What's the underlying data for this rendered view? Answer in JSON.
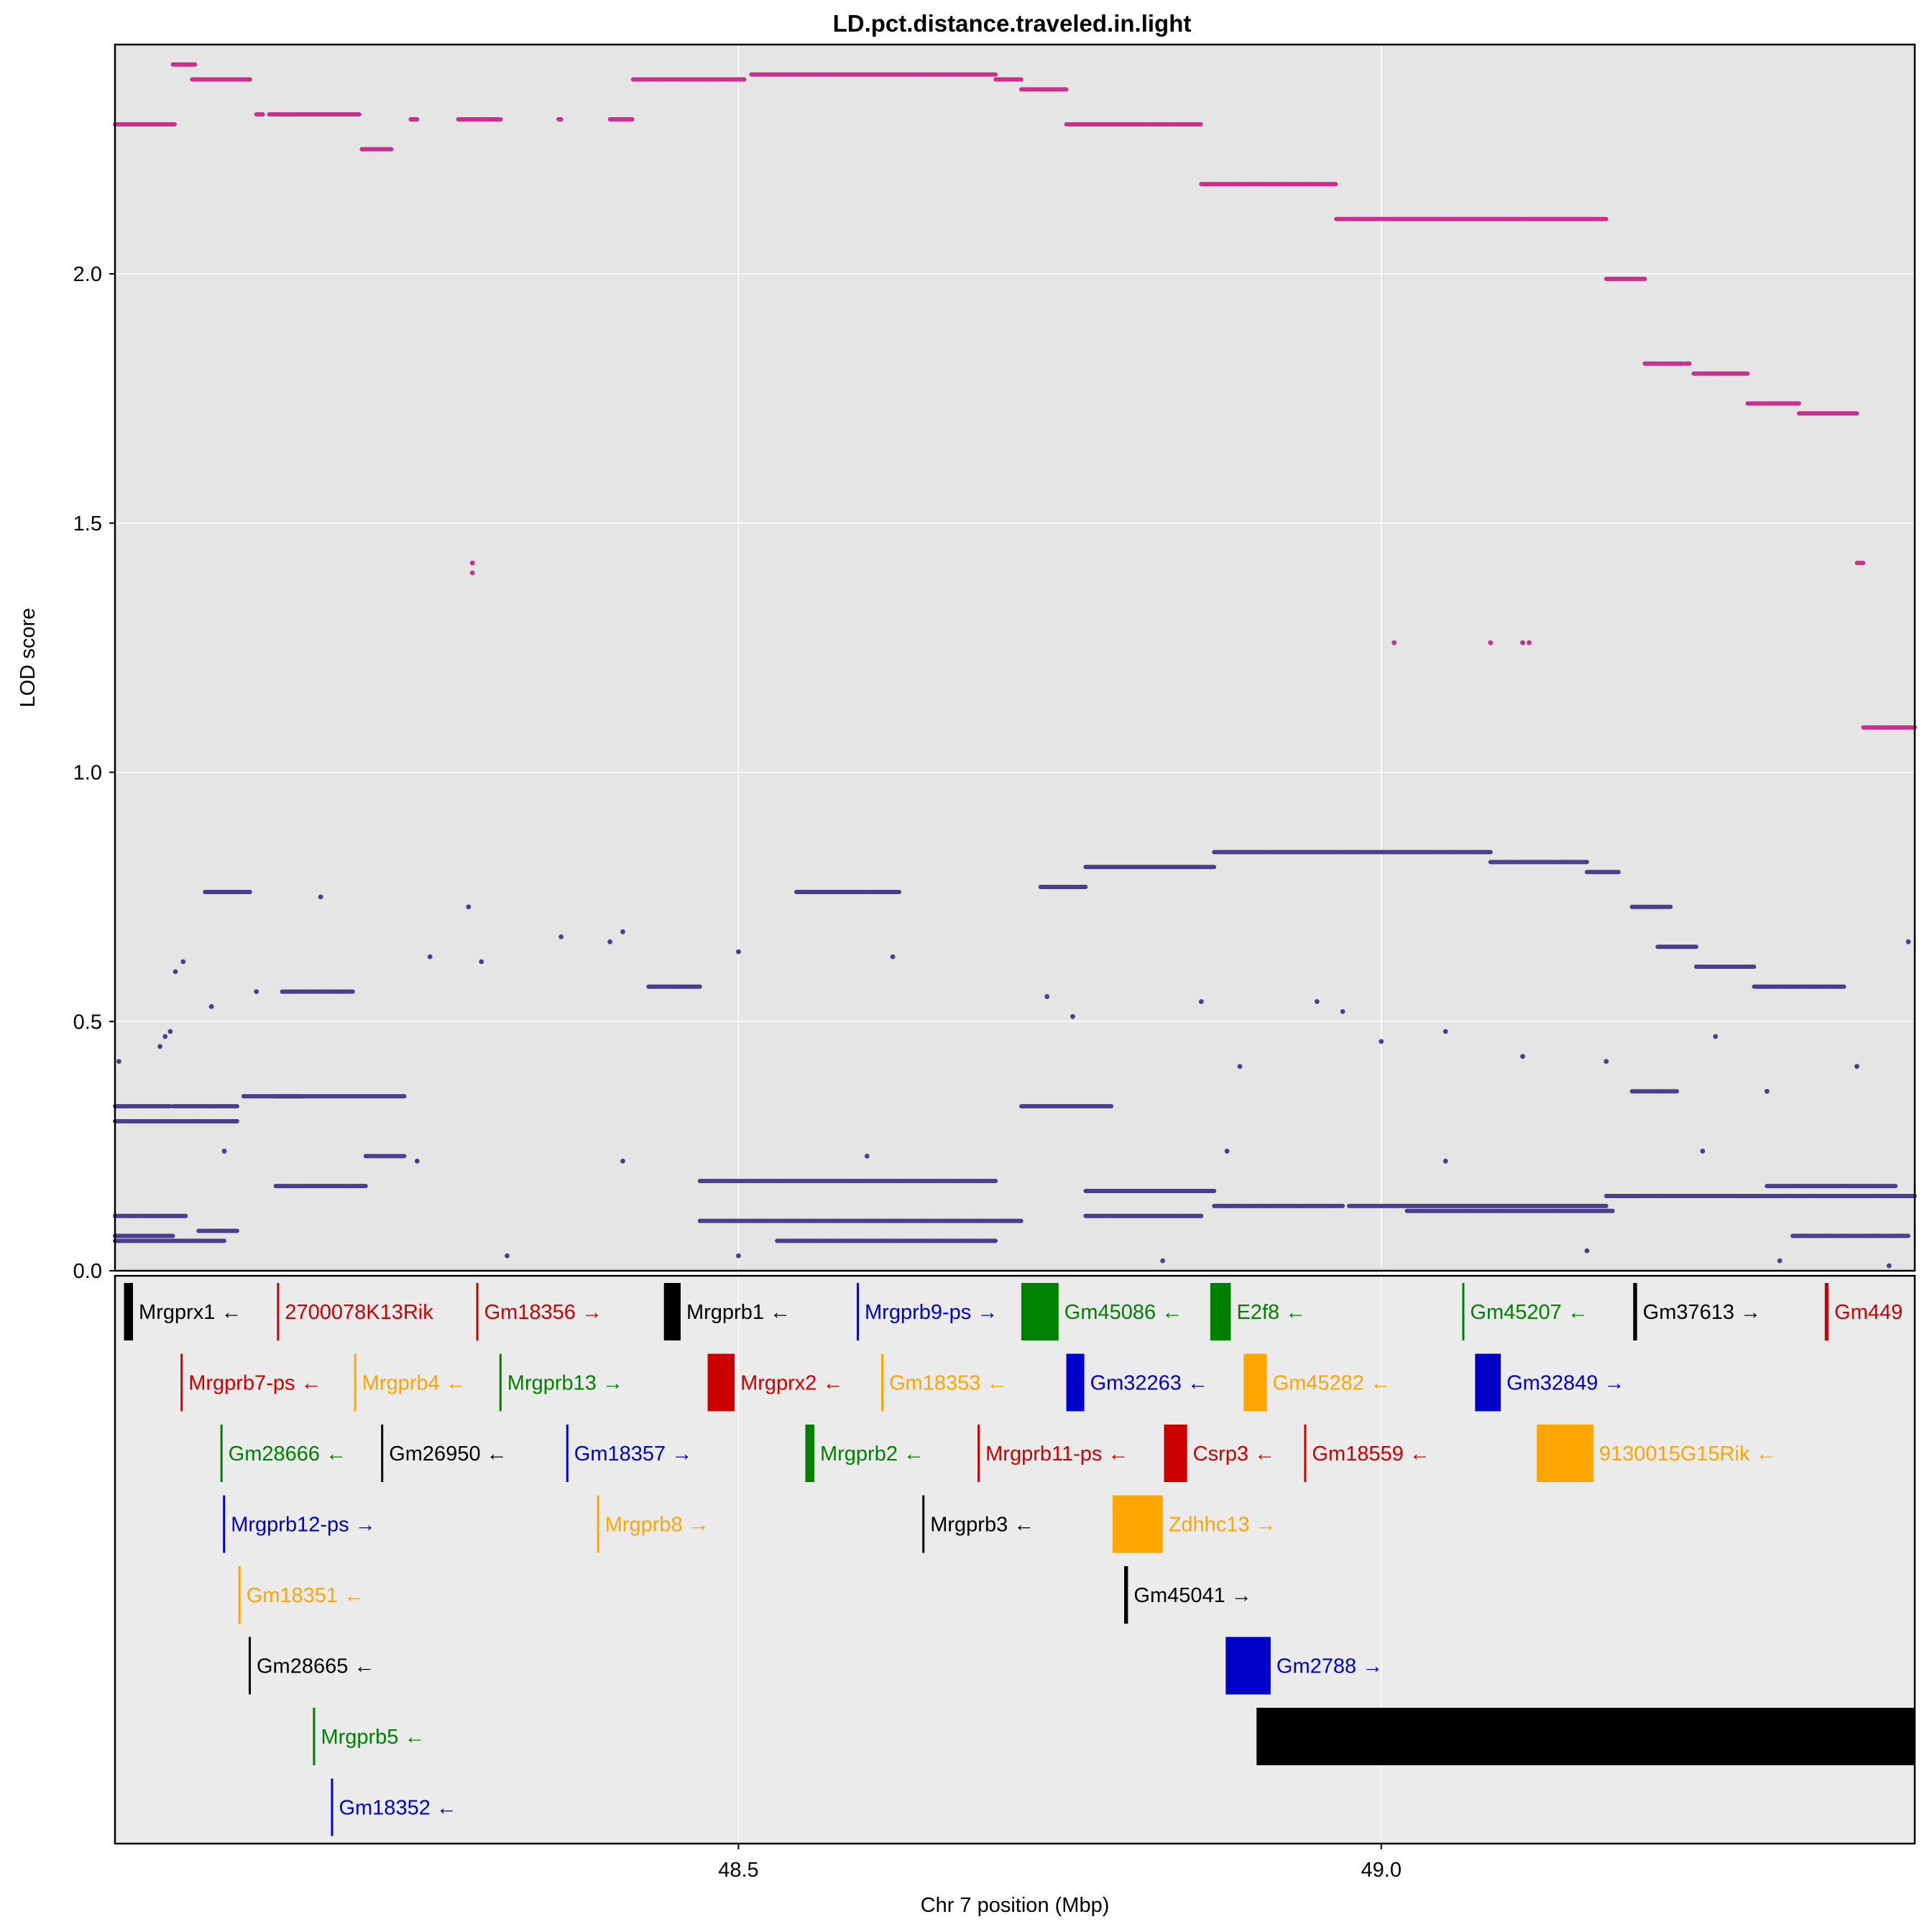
{
  "chart_data": {
    "type": "scatter",
    "title": "LD.pct.distance.traveled.in.light",
    "xlabel": "Chr 7 position (Mbp)",
    "ylabel": "LOD score",
    "xlim": [
      48.015,
      49.415
    ],
    "ylim": [
      0.0,
      2.46
    ],
    "x_ticks": [
      {
        "value": 48.5,
        "label": "48.5"
      },
      {
        "value": 49.0,
        "label": "49.0"
      }
    ],
    "y_ticks": [
      {
        "value": 0.0,
        "label": "0.0"
      },
      {
        "value": 0.5,
        "label": "0.5"
      },
      {
        "value": 1.0,
        "label": "1.0"
      },
      {
        "value": 1.5,
        "label": "1.5"
      },
      {
        "value": 2.0,
        "label": "2.0"
      }
    ],
    "colors": {
      "panel_bg": "#e5e5e5",
      "gene_panel_bg": "#ebebeb",
      "grid": "#ffffff",
      "highlight": "#c8328c",
      "background_snps": "#4b3f8c"
    },
    "series": [
      {
        "name": "top",
        "color": "#c8328c",
        "segments": [
          {
            "x": [
              48.015,
              48.062
            ],
            "y": 2.3
          },
          {
            "x": [
              48.06,
              48.078
            ],
            "y": 2.42
          },
          {
            "x": [
              48.075,
              48.12
            ],
            "y": 2.39
          },
          {
            "x": [
              48.125,
              48.13
            ],
            "y": 2.32
          },
          {
            "x": [
              48.135,
              48.205
            ],
            "y": 2.32
          },
          {
            "x": [
              48.207,
              48.23
            ],
            "y": 2.25
          },
          {
            "x": [
              48.245,
              48.25
            ],
            "y": 2.31
          },
          {
            "x": [
              48.282,
              48.3
            ],
            "y": 2.31
          },
          {
            "x": [
              48.3,
              48.315
            ],
            "y": 2.31
          },
          {
            "x": [
              48.36,
              48.362
            ],
            "y": 2.31
          },
          {
            "x": [
              48.4,
              48.418
            ],
            "y": 2.31
          },
          {
            "x": [
              48.418,
              48.505
            ],
            "y": 2.39
          },
          {
            "x": [
              48.51,
              48.7
            ],
            "y": 2.4
          },
          {
            "x": [
              48.7,
              48.72
            ],
            "y": 2.39
          },
          {
            "x": [
              48.72,
              48.755
            ],
            "y": 2.37
          },
          {
            "x": [
              48.755,
              48.86
            ],
            "y": 2.3
          },
          {
            "x": [
              48.86,
              48.965
            ],
            "y": 2.18
          },
          {
            "x": [
              48.965,
              49.175
            ],
            "y": 2.11
          },
          {
            "x": [
              49.175,
              49.205
            ],
            "y": 1.99
          },
          {
            "x": [
              49.205,
              49.235
            ],
            "y": 1.82
          },
          {
            "x": [
              49.237,
              49.24
            ],
            "y": 1.82
          },
          {
            "x": [
              49.243,
              49.285
            ],
            "y": 1.8
          },
          {
            "x": [
              49.285,
              49.325
            ],
            "y": 1.74
          },
          {
            "x": [
              49.325,
              49.37
            ],
            "y": 1.72
          },
          {
            "x": [
              49.37,
              49.375
            ],
            "y": 1.42
          },
          {
            "x": [
              49.375,
              49.415
            ],
            "y": 1.09
          }
        ],
        "points": [
          {
            "x": 48.293,
            "y": 1.42
          },
          {
            "x": 48.293,
            "y": 1.4
          },
          {
            "x": 49.01,
            "y": 1.26
          },
          {
            "x": 49.085,
            "y": 1.26
          },
          {
            "x": 49.11,
            "y": 1.26
          },
          {
            "x": 49.115,
            "y": 1.26
          }
        ]
      },
      {
        "name": "other",
        "color": "#4b3f8c",
        "segments": [
          {
            "x": [
              48.015,
              48.058
            ],
            "y": 0.33
          },
          {
            "x": [
              48.015,
              48.06
            ],
            "y": 0.3
          },
          {
            "x": [
              48.015,
              48.07
            ],
            "y": 0.11
          },
          {
            "x": [
              48.015,
              48.06
            ],
            "y": 0.07
          },
          {
            "x": [
              48.015,
              48.1
            ],
            "y": 0.06
          },
          {
            "x": [
              48.06,
              48.11
            ],
            "y": 0.33
          },
          {
            "x": [
              48.06,
              48.11
            ],
            "y": 0.3
          },
          {
            "x": [
              48.085,
              48.12
            ],
            "y": 0.76
          },
          {
            "x": [
              48.08,
              48.11
            ],
            "y": 0.08
          },
          {
            "x": [
              48.115,
              48.16
            ],
            "y": 0.35
          },
          {
            "x": [
              48.14,
              48.21
            ],
            "y": 0.35
          },
          {
            "x": [
              48.14,
              48.21
            ],
            "y": 0.17
          },
          {
            "x": [
              48.145,
              48.2
            ],
            "y": 0.56
          },
          {
            "x": [
              48.21,
              48.24
            ],
            "y": 0.35
          },
          {
            "x": [
              48.21,
              48.24
            ],
            "y": 0.23
          },
          {
            "x": [
              48.43,
              48.47
            ],
            "y": 0.57
          },
          {
            "x": [
              48.47,
              48.7
            ],
            "y": 0.18
          },
          {
            "x": [
              48.47,
              48.72
            ],
            "y": 0.1
          },
          {
            "x": [
              48.53,
              48.7
            ],
            "y": 0.06
          },
          {
            "x": [
              48.545,
              48.625
            ],
            "y": 0.76
          },
          {
            "x": [
              48.735,
              48.77
            ],
            "y": 0.77
          },
          {
            "x": [
              48.77,
              48.87
            ],
            "y": 0.81
          },
          {
            "x": [
              48.87,
              48.965
            ],
            "y": 0.84
          },
          {
            "x": [
              48.965,
              49.085
            ],
            "y": 0.84
          },
          {
            "x": [
              49.085,
              49.16
            ],
            "y": 0.82
          },
          {
            "x": [
              49.16,
              49.185
            ],
            "y": 0.8
          },
          {
            "x": [
              49.195,
              49.225
            ],
            "y": 0.73
          },
          {
            "x": [
              49.215,
              49.245
            ],
            "y": 0.65
          },
          {
            "x": [
              49.245,
              49.29
            ],
            "y": 0.61
          },
          {
            "x": [
              49.29,
              49.36
            ],
            "y": 0.57
          },
          {
            "x": [
              48.77,
              48.87
            ],
            "y": 0.16
          },
          {
            "x": [
              48.87,
              48.97
            ],
            "y": 0.13
          },
          {
            "x": [
              48.975,
              49.175
            ],
            "y": 0.13
          },
          {
            "x": [
              49.02,
              49.18
            ],
            "y": 0.12
          },
          {
            "x": [
              49.175,
              49.415
            ],
            "y": 0.15
          },
          {
            "x": [
              48.77,
              48.86
            ],
            "y": 0.11
          },
          {
            "x": [
              48.72,
              48.79
            ],
            "y": 0.33
          },
          {
            "x": [
              49.195,
              49.23
            ],
            "y": 0.36
          },
          {
            "x": [
              49.3,
              49.4
            ],
            "y": 0.17
          },
          {
            "x": [
              49.32,
              49.41
            ],
            "y": 0.07
          }
        ],
        "points": [
          {
            "x": 48.018,
            "y": 0.42
          },
          {
            "x": 48.05,
            "y": 0.45
          },
          {
            "x": 48.054,
            "y": 0.47
          },
          {
            "x": 48.058,
            "y": 0.48
          },
          {
            "x": 48.062,
            "y": 0.6
          },
          {
            "x": 48.068,
            "y": 0.62
          },
          {
            "x": 48.09,
            "y": 0.53
          },
          {
            "x": 48.125,
            "y": 0.56
          },
          {
            "x": 48.175,
            "y": 0.75
          },
          {
            "x": 48.26,
            "y": 0.63
          },
          {
            "x": 48.29,
            "y": 0.73
          },
          {
            "x": 48.3,
            "y": 0.62
          },
          {
            "x": 48.362,
            "y": 0.67
          },
          {
            "x": 48.4,
            "y": 0.66
          },
          {
            "x": 48.41,
            "y": 0.68
          },
          {
            "x": 48.5,
            "y": 0.64
          },
          {
            "x": 48.62,
            "y": 0.63
          },
          {
            "x": 48.74,
            "y": 0.55
          },
          {
            "x": 48.76,
            "y": 0.51
          },
          {
            "x": 48.86,
            "y": 0.54
          },
          {
            "x": 48.89,
            "y": 0.41
          },
          {
            "x": 48.95,
            "y": 0.54
          },
          {
            "x": 48.97,
            "y": 0.52
          },
          {
            "x": 49.0,
            "y": 0.46
          },
          {
            "x": 49.05,
            "y": 0.48
          },
          {
            "x": 49.11,
            "y": 0.43
          },
          {
            "x": 49.175,
            "y": 0.42
          },
          {
            "x": 49.26,
            "y": 0.47
          },
          {
            "x": 49.3,
            "y": 0.36
          },
          {
            "x": 49.37,
            "y": 0.41
          },
          {
            "x": 49.41,
            "y": 0.66
          },
          {
            "x": 48.32,
            "y": 0.03
          },
          {
            "x": 48.5,
            "y": 0.03
          },
          {
            "x": 48.83,
            "y": 0.02
          },
          {
            "x": 49.16,
            "y": 0.04
          },
          {
            "x": 49.31,
            "y": 0.02
          },
          {
            "x": 49.395,
            "y": 0.01
          },
          {
            "x": 48.1,
            "y": 0.24
          },
          {
            "x": 48.25,
            "y": 0.22
          },
          {
            "x": 48.41,
            "y": 0.22
          },
          {
            "x": 48.6,
            "y": 0.23
          },
          {
            "x": 48.88,
            "y": 0.24
          },
          {
            "x": 49.05,
            "y": 0.22
          },
          {
            "x": 49.25,
            "y": 0.24
          }
        ]
      }
    ],
    "genes": [
      {
        "name": "Mrgprx1",
        "strand": "←",
        "start": 48.022,
        "end": 48.029,
        "row": 0,
        "color": "#000000"
      },
      {
        "name": "2700078K13Rik",
        "strand": "",
        "start": 48.141,
        "end": 48.141,
        "row": 0,
        "color": "#cc0000"
      },
      {
        "name": "Gm18356",
        "strand": "→",
        "start": 48.296,
        "end": 48.296,
        "row": 0,
        "color": "#cc0000"
      },
      {
        "name": "Mrgprb1",
        "strand": "←",
        "start": 48.442,
        "end": 48.455,
        "row": 0,
        "color": "#000000"
      },
      {
        "name": "Mrgprb9-ps",
        "strand": "→",
        "start": 48.592,
        "end": 48.592,
        "row": 0,
        "color": "#0000c8"
      },
      {
        "name": "Gm45086",
        "strand": "←",
        "start": 48.72,
        "end": 48.749,
        "row": 0,
        "color": "#008000"
      },
      {
        "name": "E2f8",
        "strand": "←",
        "start": 48.867,
        "end": 48.883,
        "row": 0,
        "color": "#008000"
      },
      {
        "name": "Gm45207",
        "strand": "←",
        "start": 49.063,
        "end": 49.063,
        "row": 0,
        "color": "#008000"
      },
      {
        "name": "Gm37613",
        "strand": "→",
        "start": 49.196,
        "end": 49.199,
        "row": 0,
        "color": "#000000"
      },
      {
        "name": "Gm449",
        "strand": "",
        "start": 49.345,
        "end": 49.348,
        "row": 0,
        "color": "#cc0000"
      },
      {
        "name": "Mrgprb7-ps",
        "strand": "←",
        "start": 48.066,
        "end": 48.066,
        "row": 1,
        "color": "#cc0000"
      },
      {
        "name": "Mrgprb4",
        "strand": "←",
        "start": 48.201,
        "end": 48.201,
        "row": 1,
        "color": "#ffa500"
      },
      {
        "name": "Mrgprb13",
        "strand": "→",
        "start": 48.314,
        "end": 48.314,
        "row": 1,
        "color": "#008000"
      },
      {
        "name": "Mrgprx2",
        "strand": "←",
        "start": 48.476,
        "end": 48.497,
        "row": 1,
        "color": "#cc0000"
      },
      {
        "name": "Gm18353",
        "strand": "←",
        "start": 48.611,
        "end": 48.611,
        "row": 1,
        "color": "#ffa500"
      },
      {
        "name": "Gm32263",
        "strand": "←",
        "start": 48.755,
        "end": 48.769,
        "row": 1,
        "color": "#0000c8"
      },
      {
        "name": "Gm45282",
        "strand": "←",
        "start": 48.893,
        "end": 48.911,
        "row": 1,
        "color": "#ffa500"
      },
      {
        "name": "Gm32849",
        "strand": "→",
        "start": 49.073,
        "end": 49.093,
        "row": 1,
        "color": "#0000c8"
      },
      {
        "name": "Gm28666",
        "strand": "←",
        "start": 48.097,
        "end": 48.097,
        "row": 2,
        "color": "#008000"
      },
      {
        "name": "Gm26950",
        "strand": "←",
        "start": 48.222,
        "end": 48.222,
        "row": 2,
        "color": "#000000"
      },
      {
        "name": "Gm18357",
        "strand": "→",
        "start": 48.366,
        "end": 48.366,
        "row": 2,
        "color": "#0000c8"
      },
      {
        "name": "Mrgprb2",
        "strand": "←",
        "start": 48.552,
        "end": 48.559,
        "row": 2,
        "color": "#008000"
      },
      {
        "name": "Mrgprb11-ps",
        "strand": "←",
        "start": 48.686,
        "end": 48.686,
        "row": 2,
        "color": "#cc0000"
      },
      {
        "name": "Csrp3",
        "strand": "←",
        "start": 48.831,
        "end": 48.849,
        "row": 2,
        "color": "#cc0000"
      },
      {
        "name": "Gm18559",
        "strand": "←",
        "start": 48.94,
        "end": 48.94,
        "row": 2,
        "color": "#cc0000"
      },
      {
        "name": "9130015G15Rik",
        "strand": "←",
        "start": 49.121,
        "end": 49.165,
        "row": 2,
        "color": "#ffa500"
      },
      {
        "name": "Mrgprb12-ps",
        "strand": "→",
        "start": 48.099,
        "end": 48.099,
        "row": 3,
        "color": "#0000c8"
      },
      {
        "name": "Mrgprb8",
        "strand": "→",
        "start": 48.39,
        "end": 48.39,
        "row": 3,
        "color": "#ffa500"
      },
      {
        "name": "Mrgprb3",
        "strand": "←",
        "start": 48.643,
        "end": 48.643,
        "row": 3,
        "color": "#000000"
      },
      {
        "name": "Zdhhc13",
        "strand": "→",
        "start": 48.791,
        "end": 48.83,
        "row": 3,
        "color": "#ffa500"
      },
      {
        "name": "Gm18351",
        "strand": "←",
        "start": 48.111,
        "end": 48.111,
        "row": 4,
        "color": "#ffa500"
      },
      {
        "name": "Gm45041",
        "strand": "→",
        "start": 48.8,
        "end": 48.803,
        "row": 4,
        "color": "#000000"
      },
      {
        "name": "Gm28665",
        "strand": "←",
        "start": 48.119,
        "end": 48.119,
        "row": 5,
        "color": "#000000"
      },
      {
        "name": "Gm2788",
        "strand": "→",
        "start": 48.879,
        "end": 48.914,
        "row": 5,
        "color": "#0000c8"
      },
      {
        "name": "Mrgprb5",
        "strand": "←",
        "start": 48.169,
        "end": 48.169,
        "row": 6,
        "color": "#008000"
      },
      {
        "name": "",
        "strand": "",
        "start": 48.903,
        "end": 49.415,
        "row": 6,
        "color": "#000000"
      },
      {
        "name": "Gm18352",
        "strand": "←",
        "start": 48.183,
        "end": 48.183,
        "row": 7,
        "color": "#0000c8"
      }
    ]
  }
}
